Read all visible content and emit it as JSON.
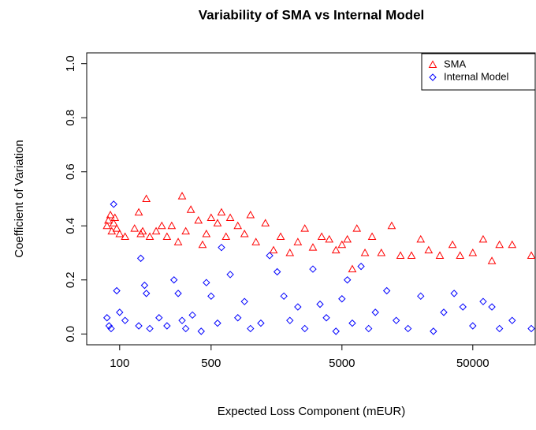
{
  "chart_data": {
    "type": "scatter",
    "title": "Variability of SMA vs Internal Model",
    "x_label": "Expected Loss Component (mEUR)",
    "y_label": "Coefficient of Variation",
    "xscale": "log",
    "xlim": [
      56,
      150000
    ],
    "ylim": [
      -0.04,
      1.04
    ],
    "xticks": [
      100,
      500,
      5000,
      50000
    ],
    "yticks": [
      {
        "value": 0,
        "label": "0.0"
      },
      {
        "value": 0.2,
        "label": "0.2"
      },
      {
        "value": 0.4,
        "label": "0.4"
      },
      {
        "value": 0.6,
        "label": "0.6"
      },
      {
        "value": 0.8,
        "label": "0.8"
      },
      {
        "value": 1,
        "label": "1.0"
      }
    ],
    "legend": "top-right",
    "series": [
      {
        "name": "SMA",
        "color": "#ff0000",
        "marker": "triangle",
        "x": [
          80,
          82,
          85,
          87,
          90,
          92,
          95,
          100,
          110,
          130,
          140,
          145,
          150,
          160,
          170,
          190,
          210,
          230,
          250,
          280,
          300,
          320,
          350,
          400,
          430,
          460,
          500,
          560,
          600,
          650,
          700,
          800,
          900,
          1000,
          1100,
          1300,
          1500,
          1700,
          2000,
          2300,
          2600,
          3000,
          3500,
          4000,
          4500,
          5000,
          5500,
          6000,
          6500,
          7500,
          8500,
          10000,
          12000,
          14000,
          17000,
          20000,
          23000,
          28000,
          35000,
          40000,
          50000,
          60000,
          70000,
          80000,
          100000,
          140000
        ],
        "values": [
          0.4,
          0.42,
          0.44,
          0.38,
          0.41,
          0.43,
          0.39,
          0.37,
          0.36,
          0.39,
          0.45,
          0.37,
          0.38,
          0.5,
          0.36,
          0.38,
          0.4,
          0.36,
          0.4,
          0.34,
          0.51,
          0.38,
          0.46,
          0.42,
          0.33,
          0.37,
          0.43,
          0.41,
          0.45,
          0.36,
          0.43,
          0.4,
          0.37,
          0.44,
          0.34,
          0.41,
          0.31,
          0.36,
          0.3,
          0.34,
          0.39,
          0.32,
          0.36,
          0.35,
          0.31,
          0.33,
          0.35,
          0.24,
          0.39,
          0.3,
          0.36,
          0.3,
          0.4,
          0.29,
          0.29,
          0.35,
          0.31,
          0.29,
          0.33,
          0.29,
          0.3,
          0.35,
          0.27,
          0.33,
          0.33,
          0.29
        ]
      },
      {
        "name": "Internal Model",
        "color": "#0000ff",
        "marker": "diamond",
        "x": [
          80,
          83,
          86,
          90,
          95,
          100,
          110,
          140,
          145,
          155,
          160,
          170,
          200,
          230,
          260,
          280,
          300,
          320,
          360,
          420,
          460,
          500,
          560,
          600,
          700,
          800,
          900,
          1000,
          1200,
          1400,
          1600,
          1800,
          2000,
          2300,
          2600,
          3000,
          3400,
          3800,
          4500,
          5000,
          5500,
          6000,
          7000,
          8000,
          9000,
          11000,
          13000,
          16000,
          20000,
          25000,
          30000,
          36000,
          42000,
          50000,
          60000,
          70000,
          80000,
          100000,
          140000
        ],
        "values": [
          0.06,
          0.03,
          0.02,
          0.48,
          0.16,
          0.08,
          0.05,
          0.03,
          0.28,
          0.18,
          0.15,
          0.02,
          0.06,
          0.03,
          0.2,
          0.15,
          0.05,
          0.02,
          0.07,
          0.01,
          0.19,
          0.14,
          0.04,
          0.32,
          0.22,
          0.06,
          0.12,
          0.02,
          0.04,
          0.29,
          0.23,
          0.14,
          0.05,
          0.1,
          0.02,
          0.24,
          0.11,
          0.06,
          0.01,
          0.13,
          0.2,
          0.04,
          0.25,
          0.02,
          0.08,
          0.16,
          0.05,
          0.02,
          0.14,
          0.01,
          0.08,
          0.15,
          0.1,
          0.03,
          0.12,
          0.1,
          0.02,
          0.05,
          0.02
        ]
      }
    ]
  }
}
